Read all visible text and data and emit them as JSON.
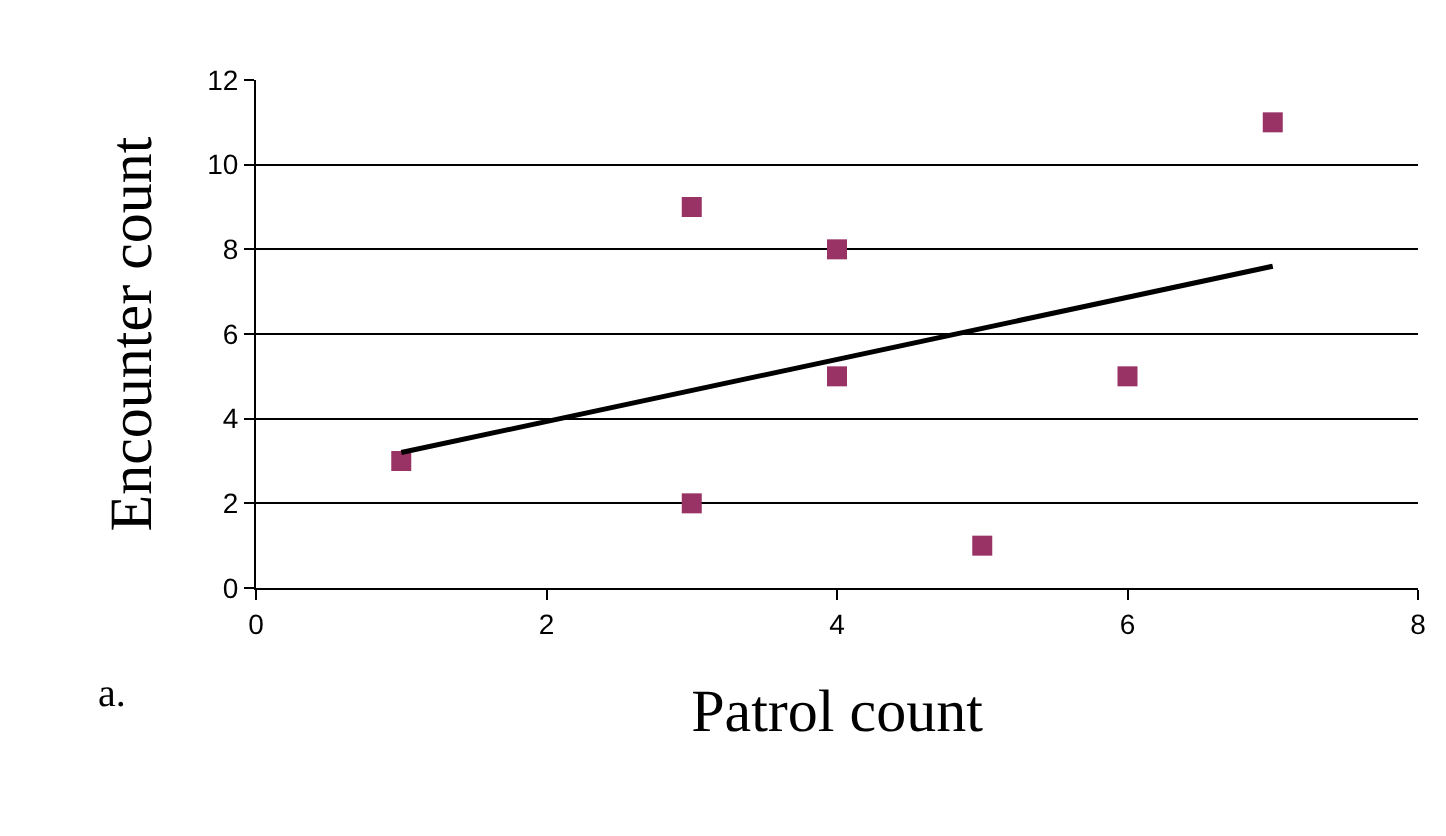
{
  "chart_data": {
    "type": "scatter",
    "xlabel": "Patrol count",
    "ylabel": "Encounter count",
    "x": [
      1,
      3,
      3,
      4,
      4,
      5,
      6,
      7
    ],
    "series": [
      {
        "color": "#993366",
        "marker": "square",
        "values": [
          3,
          9,
          2,
          8,
          5,
          1,
          5,
          11
        ]
      },
      {
        "type": "line",
        "color": "#000000",
        "marker": "none",
        "x": [
          1,
          7
        ],
        "values": [
          3.2,
          7.6
        ]
      }
    ],
    "xlim": [
      0,
      8
    ],
    "xticks": [
      0,
      2,
      4,
      6,
      8
    ],
    "ylim": [
      0,
      12
    ],
    "yticks": [
      0,
      2,
      4,
      6,
      8,
      10,
      12
    ],
    "grid": "y",
    "annotations": [
      "a."
    ]
  }
}
